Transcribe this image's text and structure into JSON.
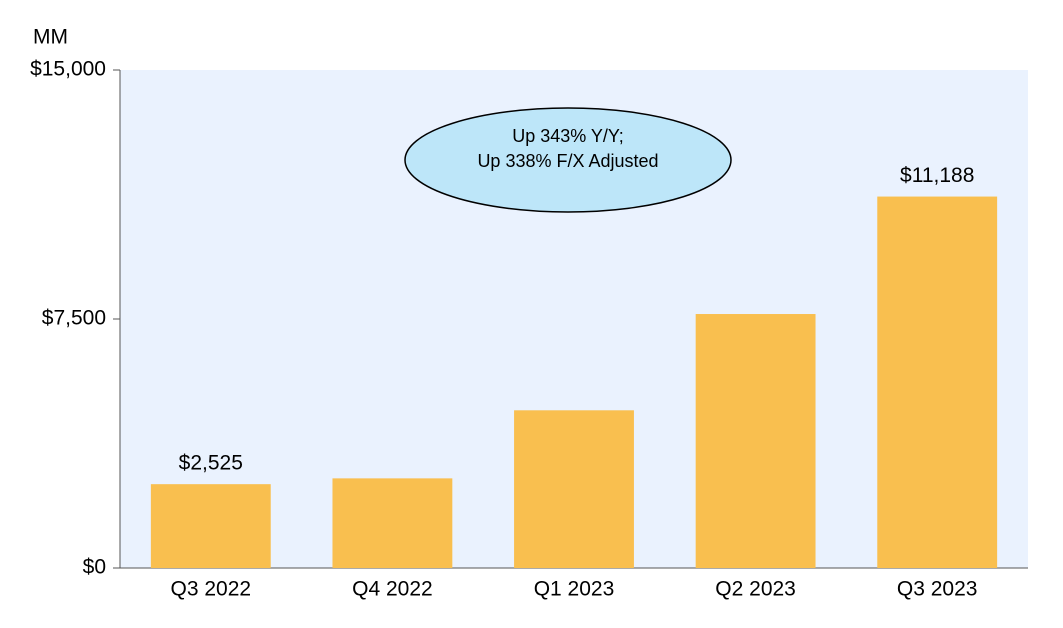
{
  "chart_data": {
    "type": "bar",
    "y_axis_label": "MM",
    "categories": [
      "Q3 2022",
      "Q4 2022",
      "Q1 2023",
      "Q2 2023",
      "Q3 2023"
    ],
    "values": [
      2525,
      2700,
      4750,
      7650,
      11188
    ],
    "value_labels": [
      "$2,525",
      null,
      null,
      null,
      "$11,188"
    ],
    "color": "#f9bf4f",
    "ylim": [
      0,
      15000
    ],
    "yticks": [
      {
        "value": 0,
        "label": "$0"
      },
      {
        "value": 7500,
        "label": "$7,500"
      },
      {
        "value": 15000,
        "label": "$15,000"
      }
    ],
    "grid": false,
    "annotation": [
      "Up 343% Y/Y;",
      "Up 338% F/X Adjusted"
    ]
  }
}
